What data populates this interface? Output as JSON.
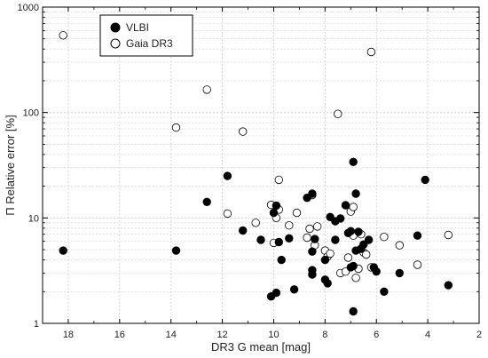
{
  "chart_data": {
    "type": "scatter",
    "xlabel": "DR3 G mean [mag]",
    "ylabel": "Π Relative error [%]",
    "x_ticks": [
      "18",
      "16",
      "14",
      "12",
      "10",
      "8",
      "6",
      "4",
      "2"
    ],
    "x_tick_values": [
      18,
      16,
      14,
      12,
      10,
      8,
      6,
      4,
      2
    ],
    "y_ticks": [
      "1",
      "10",
      "100",
      "1000"
    ],
    "y_tick_values": [
      1,
      10,
      100,
      1000
    ],
    "xlim": [
      19,
      2
    ],
    "ylim": [
      1,
      1000
    ],
    "yscale": "log",
    "x_reversed": true,
    "grid": true,
    "legend_position": "top-left",
    "colors": {
      "vlbi_fill": "#000000",
      "gaia_fill": "#ffffff",
      "stroke": "#000000",
      "grid": "#cccccc"
    },
    "series": [
      {
        "name": "VLBI",
        "marker": "filled-circle",
        "points": [
          [
            18.2,
            4.9
          ],
          [
            13.8,
            4.9
          ],
          [
            12.6,
            14.2
          ],
          [
            11.8,
            25
          ],
          [
            11.2,
            7.6
          ],
          [
            10.5,
            6.2
          ],
          [
            10.0,
            11.2
          ],
          [
            9.9,
            13.1
          ],
          [
            9.8,
            5.9
          ],
          [
            9.7,
            4.0
          ],
          [
            9.4,
            6.4
          ],
          [
            10.1,
            1.8
          ],
          [
            9.9,
            1.95
          ],
          [
            9.2,
            2.1
          ],
          [
            8.7,
            15.5
          ],
          [
            8.5,
            17
          ],
          [
            8.4,
            6.3
          ],
          [
            8.5,
            4.8
          ],
          [
            8.5,
            3.2
          ],
          [
            8.5,
            2.9
          ],
          [
            8.0,
            2.6
          ],
          [
            7.9,
            2.4
          ],
          [
            7.8,
            10.2
          ],
          [
            7.6,
            9.3
          ],
          [
            7.6,
            6.2
          ],
          [
            7.4,
            9.9
          ],
          [
            7.2,
            13.2
          ],
          [
            7.1,
            7.2
          ],
          [
            7.0,
            7.5
          ],
          [
            6.9,
            34
          ],
          [
            6.8,
            17
          ],
          [
            6.7,
            7.4
          ],
          [
            6.6,
            5.1
          ],
          [
            6.5,
            5.6
          ],
          [
            6.8,
            4.9
          ],
          [
            6.9,
            3.5
          ],
          [
            6.3,
            6.2
          ],
          [
            6.0,
            3.1
          ],
          [
            6.1,
            3.4
          ],
          [
            5.7,
            2.0
          ],
          [
            5.1,
            3.0
          ],
          [
            4.4,
            6.8
          ],
          [
            4.1,
            23
          ],
          [
            3.2,
            2.3
          ],
          [
            6.9,
            1.3
          ],
          [
            7.0,
            3.4
          ],
          [
            8.0,
            4.0
          ]
        ]
      },
      {
        "name": "Gaia DR3",
        "marker": "open-circle",
        "points": [
          [
            18.2,
            540
          ],
          [
            13.8,
            72
          ],
          [
            12.6,
            165
          ],
          [
            11.8,
            11.0
          ],
          [
            11.2,
            66
          ],
          [
            10.7,
            9.0
          ],
          [
            10.1,
            13.3
          ],
          [
            10.0,
            5.8
          ],
          [
            9.9,
            10
          ],
          [
            9.8,
            23
          ],
          [
            9.8,
            12
          ],
          [
            9.4,
            8.5
          ],
          [
            9.1,
            11.2
          ],
          [
            8.7,
            6.5
          ],
          [
            8.6,
            7.9
          ],
          [
            8.5,
            16.5
          ],
          [
            8.4,
            5.5
          ],
          [
            8.3,
            8.3
          ],
          [
            8.0,
            4.9
          ],
          [
            7.9,
            4.3
          ],
          [
            7.8,
            4.6
          ],
          [
            7.5,
            97
          ],
          [
            7.4,
            3.0
          ],
          [
            7.2,
            3.1
          ],
          [
            7.1,
            4.2
          ],
          [
            7.0,
            11.5
          ],
          [
            6.9,
            12.7
          ],
          [
            6.9,
            6.8
          ],
          [
            6.8,
            2.7
          ],
          [
            6.7,
            3.3
          ],
          [
            6.5,
            4.7
          ],
          [
            6.4,
            4.5
          ],
          [
            6.2,
            375
          ],
          [
            6.2,
            3.4
          ],
          [
            5.7,
            6.6
          ],
          [
            5.1,
            5.5
          ],
          [
            4.4,
            3.6
          ],
          [
            3.2,
            6.9
          ],
          [
            6.6,
            7.0
          ]
        ]
      }
    ]
  }
}
